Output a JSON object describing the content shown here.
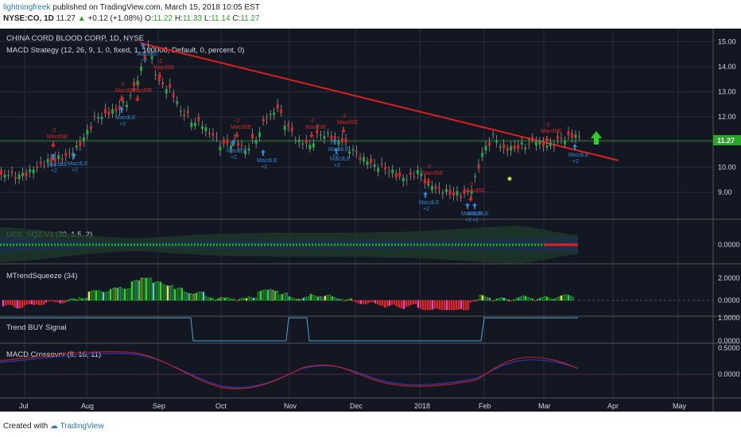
{
  "header": {
    "author": "lightningfreek",
    "published": "published on TradingView.com, March 15, 2018 10:05 EST",
    "symbol": "NYSE:CO, 1D",
    "last": "11.27",
    "change": "+0.12 (+1.08%)",
    "o_label": "O:",
    "o_value": "11.22",
    "h_label": "H:",
    "h_value": "11.33",
    "l_label": "L:",
    "l_value": "11.14",
    "c_label": "C:",
    "c_value": "11.27"
  },
  "panes": {
    "main_title": "CHINA CORD BLOOD CORP, 1D, NYSE",
    "strategy_title": "MACD Strategy (12, 26, 9, 1, 0, fixed, 1, 100000, Default, 0, percent, 0)",
    "sqz_title": "UCS_SQZ-V1 (20, 1.5, 2)",
    "mtrend_title": "MTrendSqueeze (34)",
    "trend_title": "Trend BUY Signal",
    "macd_title": "MACD Crossover (8, 16, 11)"
  },
  "axes": {
    "price_ticks": [
      "15.00",
      "14.00",
      "13.00",
      "12.00",
      "11.00",
      "10.00",
      "9.00"
    ],
    "price_last": "11.27",
    "sqz_ticks": [
      "0.0000"
    ],
    "mtrend_ticks": [
      "2.0000",
      "0.0000"
    ],
    "trend_ticks": [
      "1.0000",
      "0.0000"
    ],
    "macd_ticks": [
      "0.5000",
      "0.0000"
    ],
    "x_ticks": [
      "Jul",
      "Aug",
      "Sep",
      "Oct",
      "Nov",
      "Dec",
      "2018",
      "Feb",
      "Mar",
      "Apr",
      "May"
    ]
  },
  "chart_data": {
    "type": "candlestick",
    "ylim": [
      8.4,
      15.2
    ],
    "x_months": [
      "Jul",
      "Aug",
      "Sep",
      "Oct",
      "Nov",
      "Dec",
      "2018",
      "Feb",
      "Mar",
      "Apr",
      "May"
    ],
    "close_series": [
      9.7,
      9.6,
      9.8,
      10.1,
      10.3,
      10.4,
      10.6,
      11.1,
      11.9,
      12.1,
      12.3,
      12.6,
      13.5,
      14.8,
      13.3,
      13.1,
      12.3,
      11.9,
      11.7,
      11.2,
      10.8,
      11.0,
      10.7,
      11.2,
      12.0,
      12.3,
      11.5,
      11.0,
      10.9,
      11.4,
      11.2,
      11.0,
      10.6,
      10.3,
      10.1,
      10.0,
      9.7,
      9.5,
      9.8,
      9.3,
      9.1,
      9.0,
      8.9,
      9.1,
      10.5,
      11.2,
      10.7,
      10.8,
      10.9,
      11.1,
      10.8,
      11.0,
      11.2,
      11.27
    ],
    "trend_line": {
      "from": [
        14.8
      ],
      "to": [
        10.6
      ],
      "color": "#e01e1e"
    },
    "horizontal_line": 11.27,
    "signals": {
      "long": "MacdLE",
      "long_qty": "+2",
      "short": "MacdSE",
      "short_qty": "-2"
    },
    "sqz_zero": "0.0000",
    "trend_buy_levels": [
      0,
      1
    ],
    "macd_levels": [
      0.5,
      0
    ]
  },
  "footer": {
    "created": "Created with",
    "brand": "TradingView"
  }
}
